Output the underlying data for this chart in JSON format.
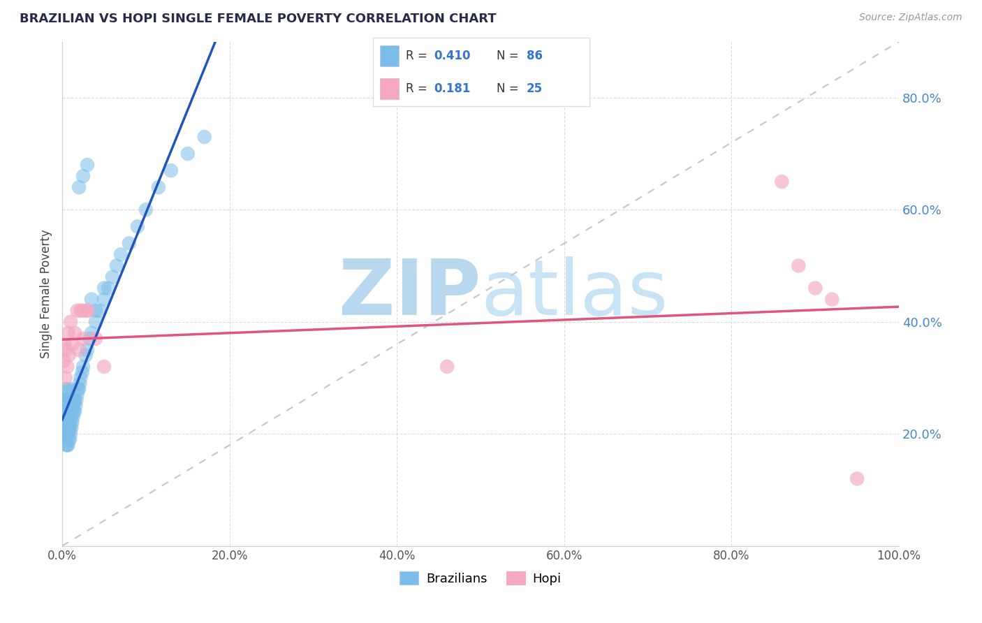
{
  "title": "BRAZILIAN VS HOPI SINGLE FEMALE POVERTY CORRELATION CHART",
  "source_text": "Source: ZipAtlas.com",
  "ylabel": "Single Female Poverty",
  "legend_label1": "Brazilians",
  "legend_label2": "Hopi",
  "R1": 0.41,
  "N1": 86,
  "R2": 0.181,
  "N2": 25,
  "blue_color": "#7bbde8",
  "pink_color": "#f4a8c0",
  "line_blue": "#2255bb",
  "line_pink": "#e05580",
  "diag_color": "#c0c0c0",
  "grid_color": "#cccccc",
  "title_color": "#2a2a4a",
  "watermark_color": "#cce4f5",
  "background_color": "#ffffff",
  "xlim": [
    0.0,
    1.0
  ],
  "ylim": [
    0.0,
    0.9
  ],
  "brazilians_x": [
    0.002,
    0.002,
    0.002,
    0.003,
    0.003,
    0.003,
    0.003,
    0.004,
    0.004,
    0.004,
    0.004,
    0.004,
    0.005,
    0.005,
    0.005,
    0.005,
    0.005,
    0.006,
    0.006,
    0.006,
    0.006,
    0.006,
    0.006,
    0.007,
    0.007,
    0.007,
    0.007,
    0.007,
    0.008,
    0.008,
    0.008,
    0.008,
    0.009,
    0.009,
    0.009,
    0.009,
    0.01,
    0.01,
    0.01,
    0.01,
    0.01,
    0.011,
    0.011,
    0.011,
    0.012,
    0.012,
    0.012,
    0.013,
    0.013,
    0.014,
    0.014,
    0.015,
    0.015,
    0.016,
    0.017,
    0.018,
    0.019,
    0.02,
    0.021,
    0.022,
    0.024,
    0.025,
    0.028,
    0.03,
    0.033,
    0.035,
    0.04,
    0.045,
    0.05,
    0.055,
    0.06,
    0.065,
    0.07,
    0.08,
    0.09,
    0.1,
    0.115,
    0.13,
    0.15,
    0.17,
    0.02,
    0.025,
    0.03,
    0.035,
    0.04,
    0.05
  ],
  "brazilians_y": [
    0.22,
    0.24,
    0.26,
    0.2,
    0.22,
    0.24,
    0.26,
    0.2,
    0.22,
    0.24,
    0.26,
    0.28,
    0.18,
    0.2,
    0.22,
    0.24,
    0.26,
    0.18,
    0.2,
    0.22,
    0.24,
    0.26,
    0.28,
    0.18,
    0.2,
    0.22,
    0.24,
    0.26,
    0.19,
    0.21,
    0.23,
    0.25,
    0.19,
    0.21,
    0.23,
    0.25,
    0.2,
    0.22,
    0.24,
    0.26,
    0.28,
    0.21,
    0.23,
    0.25,
    0.22,
    0.24,
    0.26,
    0.23,
    0.25,
    0.24,
    0.26,
    0.24,
    0.26,
    0.25,
    0.26,
    0.27,
    0.28,
    0.28,
    0.29,
    0.3,
    0.31,
    0.32,
    0.34,
    0.35,
    0.37,
    0.38,
    0.4,
    0.42,
    0.44,
    0.46,
    0.48,
    0.5,
    0.52,
    0.54,
    0.57,
    0.6,
    0.64,
    0.67,
    0.7,
    0.73,
    0.64,
    0.66,
    0.68,
    0.44,
    0.42,
    0.46
  ],
  "hopi_x": [
    0.002,
    0.003,
    0.004,
    0.005,
    0.006,
    0.007,
    0.008,
    0.01,
    0.012,
    0.015,
    0.018,
    0.022,
    0.025,
    0.03,
    0.02,
    0.025,
    0.03,
    0.04,
    0.05,
    0.46,
    0.86,
    0.88,
    0.9,
    0.92,
    0.95
  ],
  "hopi_y": [
    0.33,
    0.36,
    0.3,
    0.35,
    0.32,
    0.38,
    0.34,
    0.4,
    0.36,
    0.38,
    0.42,
    0.42,
    0.37,
    0.42,
    0.35,
    0.42,
    0.42,
    0.37,
    0.32,
    0.32,
    0.65,
    0.5,
    0.46,
    0.44,
    0.12
  ]
}
